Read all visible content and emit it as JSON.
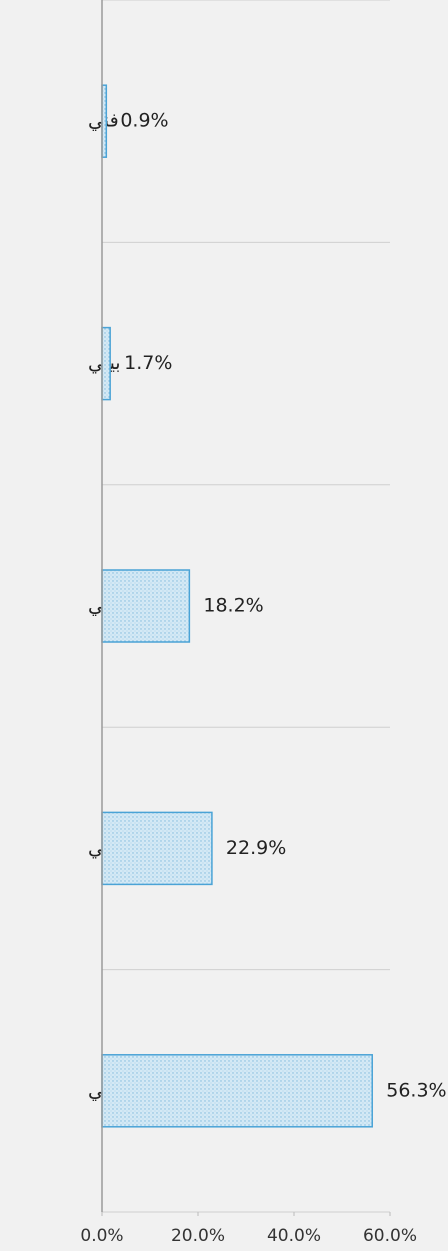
{
  "chart_data": {
    "type": "bar",
    "orientation": "horizontal",
    "categories": [
      "فني",
      "بيئي",
      "ثقافي",
      "رياضي",
      "ترفيهي"
    ],
    "values": [
      0.9,
      1.7,
      18.2,
      22.9,
      56.3
    ],
    "value_labels": [
      "0.9%",
      "1.7%",
      "18.2%",
      "22.9%",
      "56.3%"
    ],
    "color": "#4aa3d6",
    "xlim": [
      0,
      60
    ],
    "xticks": [
      {
        "value": 0,
        "label": "0.0%"
      },
      {
        "value": 20,
        "label": "20.0%"
      },
      {
        "value": 40,
        "label": "40.0%"
      },
      {
        "value": 60,
        "label": "60.0%"
      }
    ]
  }
}
